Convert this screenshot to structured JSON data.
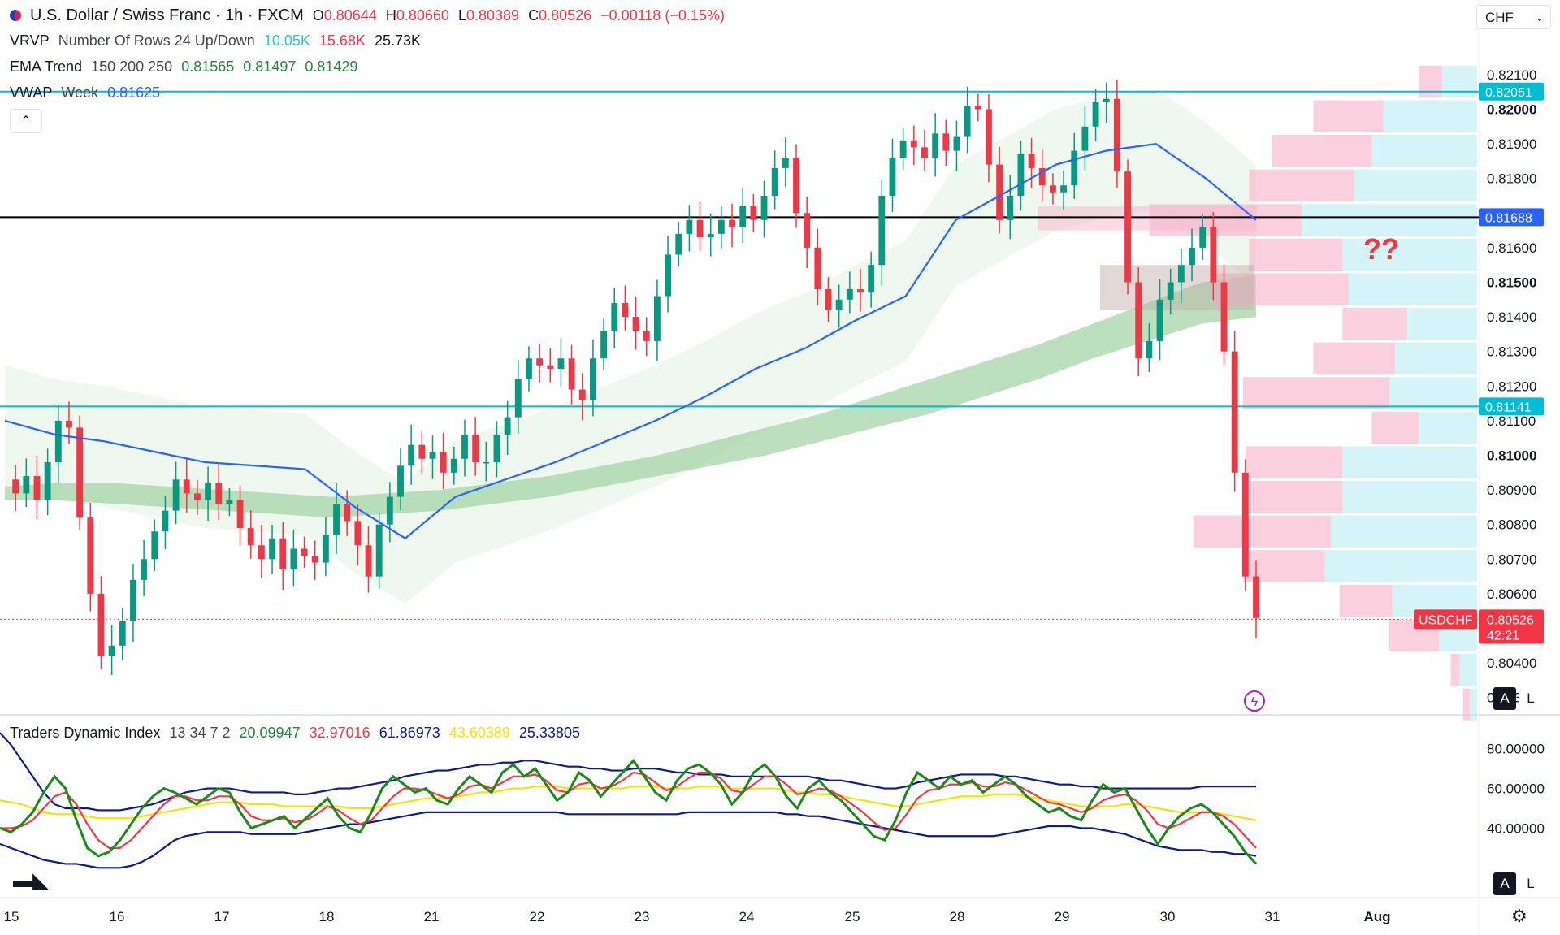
{
  "header": {
    "title": "U.S. Dollar / Swiss Franc · 1h · FXCM",
    "ohlc": [
      {
        "k": "O",
        "v": "0.80644"
      },
      {
        "k": "H",
        "v": "0.80660"
      },
      {
        "k": "L",
        "v": "0.80389"
      },
      {
        "k": "C",
        "v": "0.80526"
      }
    ],
    "change": "−0.00118 (−0.15%)",
    "currency_select": "CHF",
    "collapse_glyph": "⌃"
  },
  "indicators": {
    "vrvp": {
      "name": "VRVP",
      "params": "Number Of Rows 24 Up/Down",
      "up": "10.05K",
      "down": "15.68K",
      "total": "25.73K"
    },
    "ema": {
      "name": "EMA Trend",
      "params": "150 200 250",
      "v1": "0.81565",
      "v2": "0.81497",
      "v3": "0.81429"
    },
    "vwap": {
      "name": "VWAP",
      "params": "Week",
      "value": "0.81625"
    },
    "tdi": {
      "name": "Traders Dynamic Index",
      "params": "13 34 7 2",
      "v1": "20.09947",
      "v2": "32.97016",
      "v3": "61.86973",
      "v4": "43.60389",
      "v5": "25.33805"
    }
  },
  "chart_data": {
    "type": "candlestick",
    "symbol": "USDCHF",
    "ylim": [
      0.8025,
      0.8225
    ],
    "price_ticks": [
      "0.82100",
      "0.82000",
      "0.81900",
      "0.81800",
      "0.81600",
      "0.81500",
      "0.81400",
      "0.81300",
      "0.81200",
      "0.81100",
      "0.81000",
      "0.80900",
      "0.80800",
      "0.80700",
      "0.80600",
      "0.80400",
      "0.80300"
    ],
    "bold_ticks": [
      "0.82000",
      "0.81500",
      "0.81000"
    ],
    "x_ticks": [
      "15",
      "16",
      "17",
      "18",
      "21",
      "22",
      "23",
      "24",
      "25",
      "28",
      "29",
      "30",
      "31",
      "Aug"
    ],
    "horizontal_levels": [
      {
        "price": 0.82051,
        "label": "0.82051",
        "color": "#00bcd4"
      },
      {
        "price": 0.81688,
        "label": "0.81688",
        "color": "#000000"
      },
      {
        "price": 0.81141,
        "label": "0.81141",
        "color": "#00bcd4"
      }
    ],
    "last_price": {
      "symbol": "USDCHF",
      "price": 0.80526,
      "label": "0.80526",
      "countdown": "42:21",
      "color": "#f23645"
    },
    "annotation": "??",
    "price_path": [
      0.8093,
      0.8089,
      0.8094,
      0.8087,
      0.8098,
      0.811,
      0.8108,
      0.8082,
      0.806,
      0.8042,
      0.8045,
      0.8052,
      0.8064,
      0.807,
      0.8078,
      0.8084,
      0.8093,
      0.8089,
      0.8087,
      0.8092,
      0.8086,
      0.8087,
      0.8079,
      0.8074,
      0.807,
      0.8076,
      0.8067,
      0.8073,
      0.8071,
      0.8069,
      0.8077,
      0.8086,
      0.8081,
      0.8074,
      0.8065,
      0.808,
      0.8088,
      0.8097,
      0.8103,
      0.8099,
      0.8101,
      0.8095,
      0.8099,
      0.8106,
      0.8098,
      0.8098,
      0.8106,
      0.8111,
      0.8122,
      0.8128,
      0.8126,
      0.8125,
      0.8128,
      0.8119,
      0.8116,
      0.8128,
      0.8136,
      0.8144,
      0.814,
      0.8136,
      0.8133,
      0.8146,
      0.8158,
      0.8164,
      0.8168,
      0.8163,
      0.8164,
      0.8168,
      0.8166,
      0.8172,
      0.8168,
      0.8175,
      0.8183,
      0.8186,
      0.817,
      0.816,
      0.8148,
      0.8142,
      0.8145,
      0.8148,
      0.8147,
      0.8155,
      0.8175,
      0.8186,
      0.8191,
      0.8189,
      0.8186,
      0.8193,
      0.8188,
      0.8192,
      0.8201,
      0.82,
      0.8184,
      0.8168,
      0.8175,
      0.8187,
      0.8183,
      0.8178,
      0.8176,
      0.8178,
      0.8188,
      0.8195,
      0.8202,
      0.8203,
      0.8182,
      0.815,
      0.8128,
      0.8133,
      0.8145,
      0.815,
      0.8155,
      0.816,
      0.8166,
      0.815,
      0.813,
      0.8095,
      0.8065,
      0.8053
    ],
    "ema_band_upper": [
      0.8091,
      0.8092,
      0.8092,
      0.8091,
      0.809,
      0.8089,
      0.8088,
      0.8089,
      0.809,
      0.8092,
      0.8094,
      0.8097,
      0.81,
      0.8104,
      0.8108,
      0.8112,
      0.8117,
      0.8122,
      0.8127,
      0.8132,
      0.8138,
      0.8144,
      0.815,
      0.8152
    ],
    "ema_band_lower": [
      0.8087,
      0.8087,
      0.8086,
      0.8085,
      0.8084,
      0.8083,
      0.8082,
      0.8083,
      0.8084,
      0.8086,
      0.8088,
      0.8091,
      0.8094,
      0.8097,
      0.81,
      0.8104,
      0.8108,
      0.8112,
      0.8117,
      0.8122,
      0.8128,
      0.8133,
      0.8138,
      0.814
    ],
    "vwap_path": [
      0.811,
      0.8106,
      0.8104,
      0.8101,
      0.8098,
      0.8097,
      0.8096,
      0.8085,
      0.8076,
      0.8088,
      0.8093,
      0.8098,
      0.8104,
      0.811,
      0.8117,
      0.8125,
      0.8131,
      0.8139,
      0.8146,
      0.8168,
      0.8176,
      0.8184,
      0.8188,
      0.819,
      0.818,
      0.8168
    ],
    "volume_profile": {
      "rows": [
        {
          "price": 0.8208,
          "up": 60,
          "down": 40
        },
        {
          "price": 0.8198,
          "up": 160,
          "down": 120
        },
        {
          "price": 0.8188,
          "up": 180,
          "down": 170
        },
        {
          "price": 0.8178,
          "up": 210,
          "down": 180
        },
        {
          "price": 0.8168,
          "up": 300,
          "down": 260
        },
        {
          "price": 0.8158,
          "up": 230,
          "down": 160
        },
        {
          "price": 0.8148,
          "up": 220,
          "down": 230
        },
        {
          "price": 0.8138,
          "up": 120,
          "down": 110
        },
        {
          "price": 0.8128,
          "up": 140,
          "down": 140
        },
        {
          "price": 0.8118,
          "up": 150,
          "down": 250
        },
        {
          "price": 0.8108,
          "up": 100,
          "down": 80
        },
        {
          "price": 0.8098,
          "up": 230,
          "down": 165
        },
        {
          "price": 0.8088,
          "up": 230,
          "down": 160
        },
        {
          "price": 0.8078,
          "up": 250,
          "down": 235
        },
        {
          "price": 0.8068,
          "up": 260,
          "down": 140
        },
        {
          "price": 0.8058,
          "up": 145,
          "down": 90
        },
        {
          "price": 0.8048,
          "up": 65,
          "down": 85
        },
        {
          "price": 0.8038,
          "up": 30,
          "down": 15
        },
        {
          "price": 0.8028,
          "up": 12,
          "down": 12
        }
      ]
    },
    "tdi_panel": {
      "ylim": [
        5,
        95
      ],
      "ticks": [
        "80.00000",
        "60.00000",
        "40.00000"
      ],
      "green": [
        40,
        38,
        42,
        48,
        58,
        66,
        60,
        44,
        30,
        26,
        28,
        34,
        42,
        50,
        56,
        60,
        58,
        55,
        52,
        56,
        60,
        58,
        48,
        40,
        42,
        44,
        46,
        40,
        45,
        50,
        55,
        46,
        40,
        38,
        48,
        60,
        66,
        62,
        58,
        60,
        54,
        52,
        60,
        66,
        62,
        58,
        68,
        72,
        66,
        70,
        62,
        54,
        58,
        68,
        64,
        56,
        62,
        68,
        74,
        66,
        58,
        54,
        64,
        70,
        72,
        68,
        62,
        52,
        58,
        68,
        72,
        66,
        56,
        50,
        60,
        64,
        58,
        54,
        48,
        42,
        36,
        34,
        44,
        58,
        68,
        64,
        60,
        66,
        62,
        64,
        58,
        62,
        66,
        62,
        56,
        52,
        48,
        50,
        46,
        44,
        54,
        62,
        58,
        60,
        50,
        40,
        32,
        40,
        46,
        50,
        52,
        48,
        42,
        36,
        28,
        22
      ],
      "red": [
        40,
        40,
        41,
        44,
        50,
        56,
        58,
        52,
        42,
        34,
        30,
        30,
        34,
        40,
        46,
        52,
        56,
        56,
        54,
        54,
        56,
        56,
        52,
        46,
        44,
        44,
        45,
        43,
        44,
        47,
        51,
        49,
        45,
        42,
        44,
        50,
        56,
        60,
        60,
        59,
        57,
        55,
        57,
        61,
        62,
        60,
        63,
        66,
        66,
        67,
        64,
        59,
        58,
        62,
        63,
        60,
        61,
        64,
        68,
        67,
        63,
        59,
        61,
        65,
        68,
        68,
        65,
        59,
        58,
        62,
        66,
        66,
        62,
        57,
        58,
        60,
        59,
        56,
        52,
        48,
        43,
        39,
        40,
        47,
        55,
        59,
        60,
        62,
        62,
        63,
        61,
        61,
        63,
        62,
        59,
        56,
        53,
        52,
        50,
        48,
        50,
        54,
        56,
        57,
        54,
        49,
        42,
        40,
        42,
        45,
        48,
        48,
        46,
        42,
        36,
        30
      ],
      "yellow": [
        54,
        53,
        52,
        50,
        48,
        47,
        47,
        47,
        46,
        45,
        45,
        45,
        45,
        46,
        47,
        48,
        49,
        50,
        51,
        52,
        53,
        53,
        53,
        52,
        52,
        52,
        51,
        51,
        51,
        51,
        51,
        51,
        50,
        50,
        50,
        51,
        52,
        53,
        54,
        55,
        55,
        55,
        56,
        57,
        58,
        58,
        59,
        60,
        60,
        61,
        61,
        61,
        60,
        60,
        60,
        60,
        60,
        60,
        61,
        61,
        61,
        60,
        60,
        60,
        61,
        61,
        61,
        60,
        60,
        60,
        60,
        60,
        59,
        58,
        58,
        57,
        57,
        56,
        55,
        54,
        53,
        52,
        51,
        51,
        52,
        53,
        54,
        55,
        56,
        56,
        56,
        57,
        57,
        57,
        56,
        55,
        54,
        53,
        52,
        51,
        51,
        51,
        51,
        52,
        52,
        51,
        50,
        49,
        48,
        48,
        48,
        48,
        47,
        46,
        45,
        44
      ],
      "blue_upper": [
        88,
        82,
        74,
        66,
        58,
        52,
        50,
        50,
        50,
        49,
        49,
        49,
        50,
        51,
        52,
        54,
        56,
        58,
        59,
        60,
        60,
        60,
        59,
        58,
        58,
        58,
        58,
        57,
        57,
        58,
        59,
        60,
        60,
        61,
        62,
        63,
        64,
        66,
        67,
        68,
        69,
        69,
        70,
        71,
        72,
        72,
        73,
        73,
        74,
        74,
        73,
        72,
        71,
        71,
        70,
        70,
        69,
        69,
        70,
        70,
        70,
        69,
        68,
        68,
        67,
        67,
        67,
        66,
        66,
        66,
        66,
        66,
        66,
        66,
        66,
        65,
        64,
        64,
        63,
        62,
        61,
        60,
        60,
        61,
        63,
        64,
        65,
        66,
        67,
        67,
        67,
        67,
        66,
        66,
        65,
        64,
        63,
        62,
        62,
        61,
        61,
        60,
        60,
        60,
        60,
        60,
        60,
        60,
        60,
        60,
        61,
        61,
        61,
        61,
        61,
        61
      ],
      "blue_lower": [
        32,
        30,
        28,
        26,
        24,
        23,
        22,
        22,
        21,
        20,
        20,
        20,
        21,
        23,
        26,
        30,
        34,
        36,
        37,
        38,
        38,
        38,
        38,
        37,
        37,
        37,
        37,
        37,
        38,
        39,
        40,
        41,
        42,
        42,
        43,
        44,
        45,
        46,
        47,
        48,
        48,
        48,
        48,
        48,
        48,
        48,
        48,
        48,
        48,
        48,
        48,
        48,
        47,
        47,
        47,
        47,
        47,
        47,
        47,
        47,
        47,
        47,
        47,
        48,
        48,
        48,
        48,
        48,
        48,
        48,
        48,
        48,
        47,
        47,
        46,
        46,
        45,
        44,
        43,
        42,
        41,
        40,
        39,
        38,
        37,
        36,
        36,
        36,
        36,
        36,
        36,
        36,
        37,
        38,
        39,
        40,
        41,
        41,
        41,
        40,
        40,
        39,
        38,
        37,
        35,
        33,
        31,
        30,
        29,
        29,
        29,
        28,
        28,
        27,
        27,
        26
      ]
    }
  }
}
